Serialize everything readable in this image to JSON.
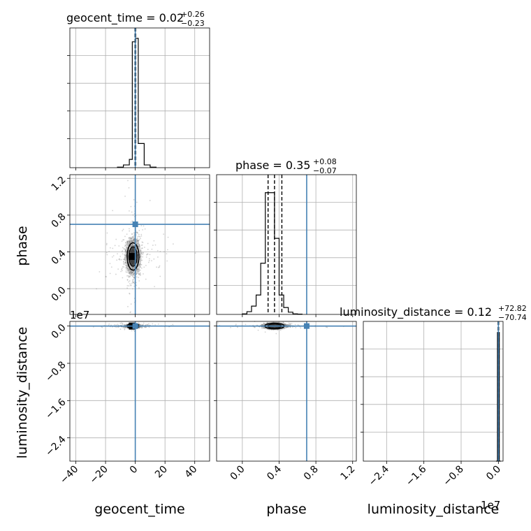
{
  "colors": {
    "truth": "#4682b4",
    "hist": "#000000",
    "grid": "#b0b0b0",
    "scatter": "#808080"
  },
  "titles": {
    "geocent_time": {
      "name": "geocent_time",
      "median": "0.02",
      "plus": "+0.26",
      "minus": "−0.23"
    },
    "phase": {
      "name": "phase",
      "median": "0.35",
      "plus": "+0.08",
      "minus": "−0.07"
    },
    "luminosity_distance": {
      "name": "luminosity_distance",
      "median": "0.12",
      "plus": "+72.82",
      "minus": "−70.74"
    }
  },
  "axis_labels": {
    "geocent_time": "geocent_time",
    "phase": "phase",
    "luminosity_distance": "luminosity_distance"
  },
  "offset_labels": {
    "row_luminosity": "1e7",
    "col_luminosity": "1e7"
  },
  "chart_data": {
    "type": "corner",
    "parameters": [
      "geocent_time",
      "phase",
      "luminosity_distance"
    ],
    "truths": {
      "geocent_time": 0.0,
      "phase": 0.7,
      "luminosity_distance": 0.0
    },
    "ranges": {
      "geocent_time": [
        -44,
        50
      ],
      "phase": [
        -0.28,
        1.24
      ],
      "luminosity_distance": [
        -2.9,
        0.1
      ]
    },
    "ticks": {
      "geocent_time": {
        "values": [
          -40,
          -20,
          0,
          20,
          40
        ],
        "labels": [
          "−40",
          "−20",
          "0",
          "20",
          "40"
        ]
      },
      "phase": {
        "values": [
          0.0,
          0.4,
          0.8,
          1.2
        ],
        "labels": [
          "0.0",
          "0.4",
          "0.8",
          "1.2"
        ]
      },
      "luminosity_distance": {
        "values": [
          -2.4,
          -1.6,
          -0.8,
          0.0
        ],
        "labels": [
          "−2.4",
          "−1.6",
          "−0.8",
          "0.0"
        ]
      }
    },
    "histograms": {
      "geocent_time": {
        "edges": [
          -12,
          -8,
          -4,
          -2,
          0,
          2,
          6,
          10,
          14
        ],
        "counts": [
          0.004,
          0.02,
          0.06,
          0.91,
          0.935,
          0.175,
          0.02,
          0.004
        ],
        "quantiles": [
          -0.21,
          0.02,
          0.28
        ]
      },
      "phase": {
        "edges": [
          0.0,
          0.05,
          0.1,
          0.15,
          0.2,
          0.25,
          0.3,
          0.35,
          0.4,
          0.45,
          0.5,
          0.55,
          0.6,
          0.65
        ],
        "counts": [
          0.004,
          0.02,
          0.06,
          0.14,
          0.37,
          0.88,
          0.88,
          0.55,
          0.14,
          0.05,
          0.016,
          0.004,
          0.002
        ],
        "quantiles": [
          0.28,
          0.35,
          0.43
        ]
      },
      "luminosity_distance": {
        "edges": [
          -0.05,
          -0.02,
          0.0,
          0.02,
          0.05
        ],
        "counts": [
          0.0,
          0.93,
          0.93,
          0.0
        ],
        "quantiles": [
          -0.007,
          0.0,
          0.007
        ]
      }
    }
  }
}
